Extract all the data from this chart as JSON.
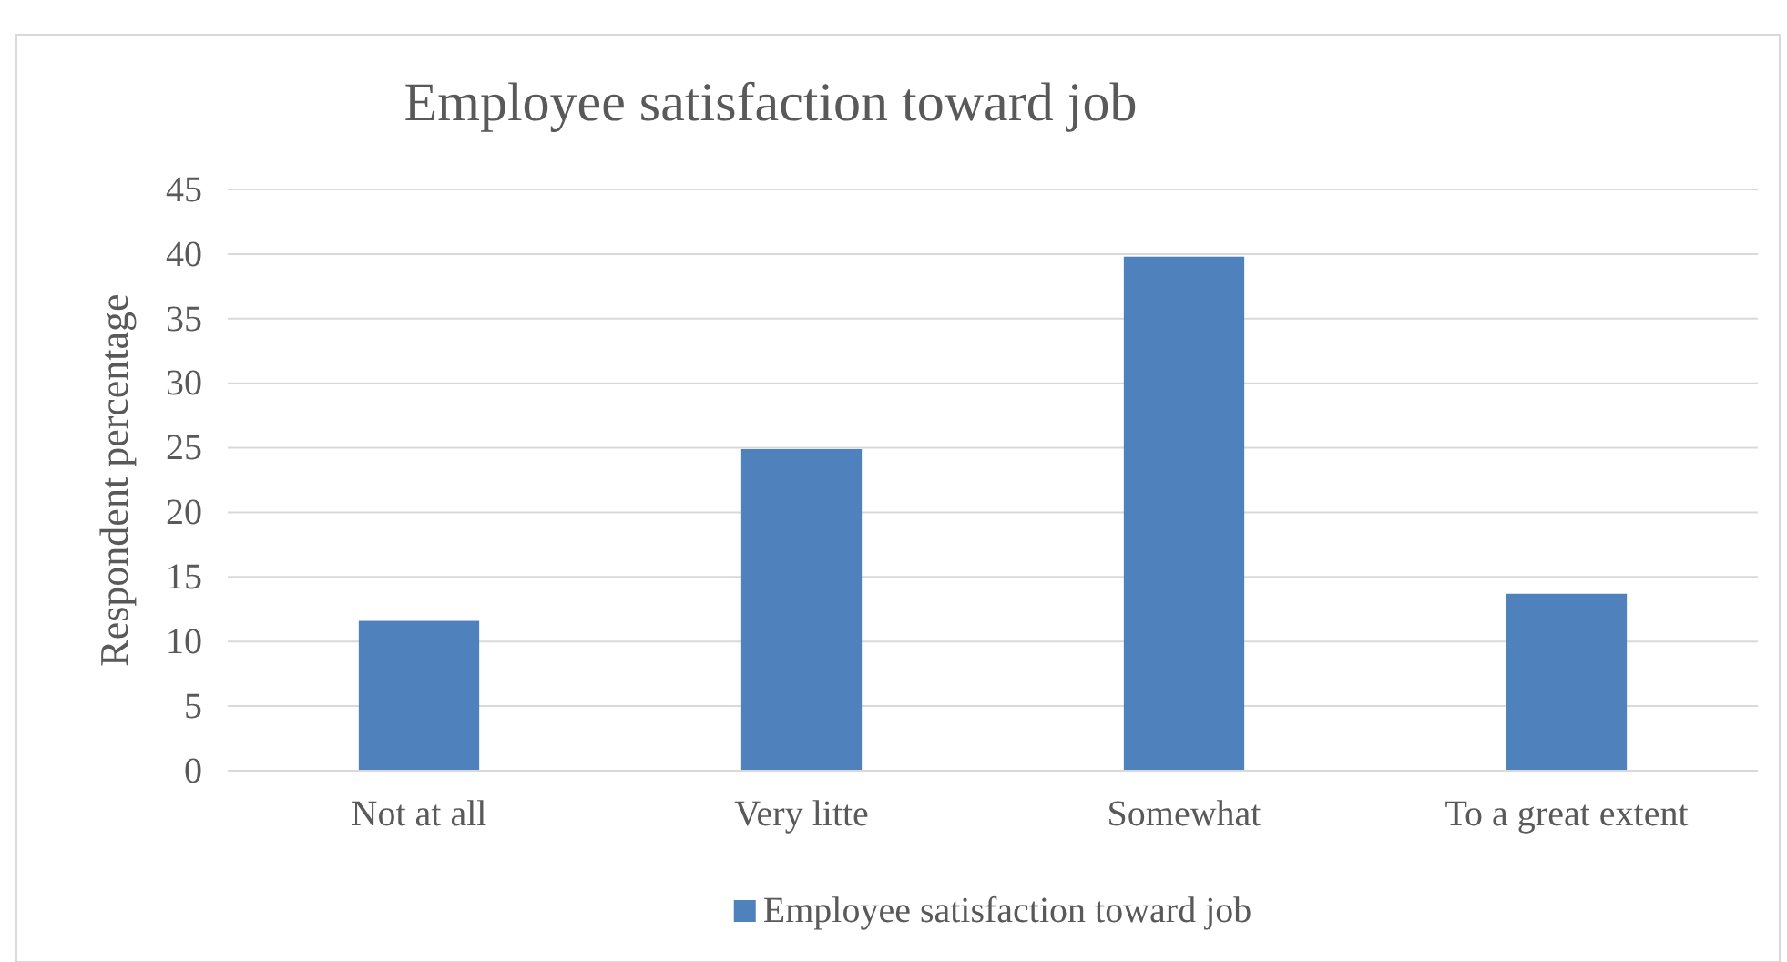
{
  "chart_data": {
    "type": "bar",
    "title": "Employee satisfaction toward job",
    "ylabel": "Respondent percentage",
    "categories": [
      "Not at all",
      "Very litte",
      "Somewhat",
      "To a great extent"
    ],
    "series": [
      {
        "name": "Employee satisfaction toward job",
        "color": "#4f81bd",
        "values": [
          11.6,
          24.9,
          39.8,
          13.7
        ]
      }
    ],
    "ylim": [
      0,
      45
    ],
    "yticks": [
      0,
      5,
      10,
      15,
      20,
      25,
      30,
      35,
      40,
      45
    ],
    "grid": "y",
    "legend": "bottom"
  }
}
